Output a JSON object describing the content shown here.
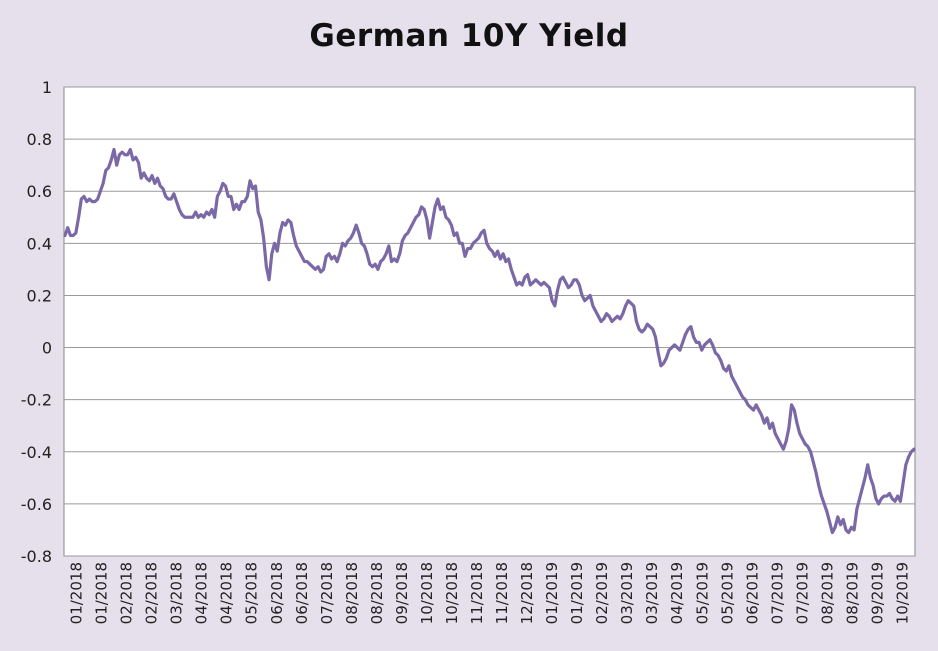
{
  "chart_data": {
    "type": "line",
    "title": "German 10Y Yield",
    "xlabel": "",
    "ylabel": "",
    "ylim": [
      -0.8,
      1
    ],
    "yticks": [
      1,
      0.8,
      0.6,
      0.4,
      0.2,
      0,
      -0.2,
      -0.4,
      -0.6,
      -0.8
    ],
    "grid": true,
    "line_color": "#7b68a6",
    "x_tick_labels": [
      "01/2018",
      "01/2018",
      "02/2018",
      "02/2018",
      "03/2018",
      "04/2018",
      "04/2018",
      "05/2018",
      "06/2018",
      "06/2018",
      "07/2018",
      "08/2018",
      "08/2018",
      "09/2018",
      "10/2018",
      "10/2018",
      "11/2018",
      "11/2018",
      "12/2018",
      "01/2019",
      "01/2019",
      "02/2019",
      "03/2019",
      "03/2019",
      "04/2019",
      "05/2019",
      "05/2019",
      "06/2019",
      "07/2019",
      "07/2019",
      "08/2019",
      "08/2019",
      "09/2019",
      "10/2019"
    ],
    "series": [
      {
        "values": [
          0.43,
          0.46,
          0.43,
          0.43,
          0.44,
          0.5,
          0.57,
          0.58,
          0.56,
          0.57,
          0.56,
          0.56,
          0.57,
          0.6,
          0.63,
          0.68,
          0.69,
          0.72,
          0.76,
          0.7,
          0.74,
          0.75,
          0.74,
          0.74,
          0.76,
          0.72,
          0.73,
          0.71,
          0.65,
          0.67,
          0.65,
          0.64,
          0.66,
          0.63,
          0.65,
          0.62,
          0.61,
          0.58,
          0.57,
          0.57,
          0.59,
          0.56,
          0.53,
          0.51,
          0.5,
          0.5,
          0.5,
          0.5,
          0.52,
          0.5,
          0.51,
          0.5,
          0.52,
          0.51,
          0.53,
          0.5,
          0.58,
          0.6,
          0.63,
          0.62,
          0.58,
          0.58,
          0.53,
          0.55,
          0.53,
          0.56,
          0.56,
          0.58,
          0.64,
          0.61,
          0.62,
          0.52,
          0.49,
          0.42,
          0.31,
          0.26,
          0.36,
          0.4,
          0.37,
          0.44,
          0.48,
          0.47,
          0.49,
          0.48,
          0.43,
          0.39,
          0.37,
          0.35,
          0.33,
          0.33,
          0.32,
          0.31,
          0.3,
          0.31,
          0.29,
          0.3,
          0.35,
          0.36,
          0.34,
          0.35,
          0.33,
          0.36,
          0.4,
          0.39,
          0.41,
          0.42,
          0.44,
          0.47,
          0.44,
          0.4,
          0.39,
          0.36,
          0.32,
          0.31,
          0.32,
          0.3,
          0.33,
          0.34,
          0.36,
          0.39,
          0.33,
          0.34,
          0.33,
          0.36,
          0.41,
          0.43,
          0.44,
          0.46,
          0.48,
          0.5,
          0.51,
          0.54,
          0.53,
          0.49,
          0.42,
          0.48,
          0.54,
          0.57,
          0.53,
          0.54,
          0.5,
          0.49,
          0.47,
          0.43,
          0.44,
          0.4,
          0.4,
          0.35,
          0.38,
          0.38,
          0.4,
          0.41,
          0.42,
          0.44,
          0.45,
          0.4,
          0.38,
          0.37,
          0.35,
          0.37,
          0.34,
          0.36,
          0.33,
          0.34,
          0.3,
          0.27,
          0.24,
          0.25,
          0.24,
          0.27,
          0.28,
          0.24,
          0.25,
          0.26,
          0.25,
          0.24,
          0.25,
          0.24,
          0.23,
          0.18,
          0.16,
          0.22,
          0.26,
          0.27,
          0.25,
          0.23,
          0.24,
          0.26,
          0.26,
          0.24,
          0.2,
          0.18,
          0.19,
          0.2,
          0.16,
          0.14,
          0.12,
          0.1,
          0.11,
          0.13,
          0.12,
          0.1,
          0.11,
          0.12,
          0.11,
          0.13,
          0.16,
          0.18,
          0.17,
          0.16,
          0.1,
          0.07,
          0.06,
          0.07,
          0.09,
          0.08,
          0.07,
          0.04,
          -0.02,
          -0.07,
          -0.06,
          -0.04,
          -0.01,
          0.0,
          0.01,
          0.0,
          -0.01,
          0.02,
          0.05,
          0.07,
          0.08,
          0.04,
          0.02,
          0.02,
          -0.01,
          0.01,
          0.02,
          0.03,
          0.01,
          -0.02,
          -0.03,
          -0.05,
          -0.08,
          -0.09,
          -0.07,
          -0.11,
          -0.13,
          -0.15,
          -0.17,
          -0.19,
          -0.2,
          -0.22,
          -0.23,
          -0.24,
          -0.22,
          -0.24,
          -0.26,
          -0.29,
          -0.27,
          -0.31,
          -0.29,
          -0.33,
          -0.35,
          -0.37,
          -0.39,
          -0.36,
          -0.31,
          -0.22,
          -0.24,
          -0.29,
          -0.33,
          -0.35,
          -0.37,
          -0.38,
          -0.4,
          -0.44,
          -0.48,
          -0.53,
          -0.57,
          -0.6,
          -0.63,
          -0.67,
          -0.71,
          -0.69,
          -0.65,
          -0.68,
          -0.66,
          -0.7,
          -0.71,
          -0.69,
          -0.7,
          -0.62,
          -0.58,
          -0.54,
          -0.5,
          -0.45,
          -0.5,
          -0.53,
          -0.58,
          -0.6,
          -0.58,
          -0.57,
          -0.57,
          -0.56,
          -0.58,
          -0.59,
          -0.57,
          -0.59,
          -0.52,
          -0.45,
          -0.42,
          -0.4,
          -0.39
        ]
      }
    ]
  }
}
